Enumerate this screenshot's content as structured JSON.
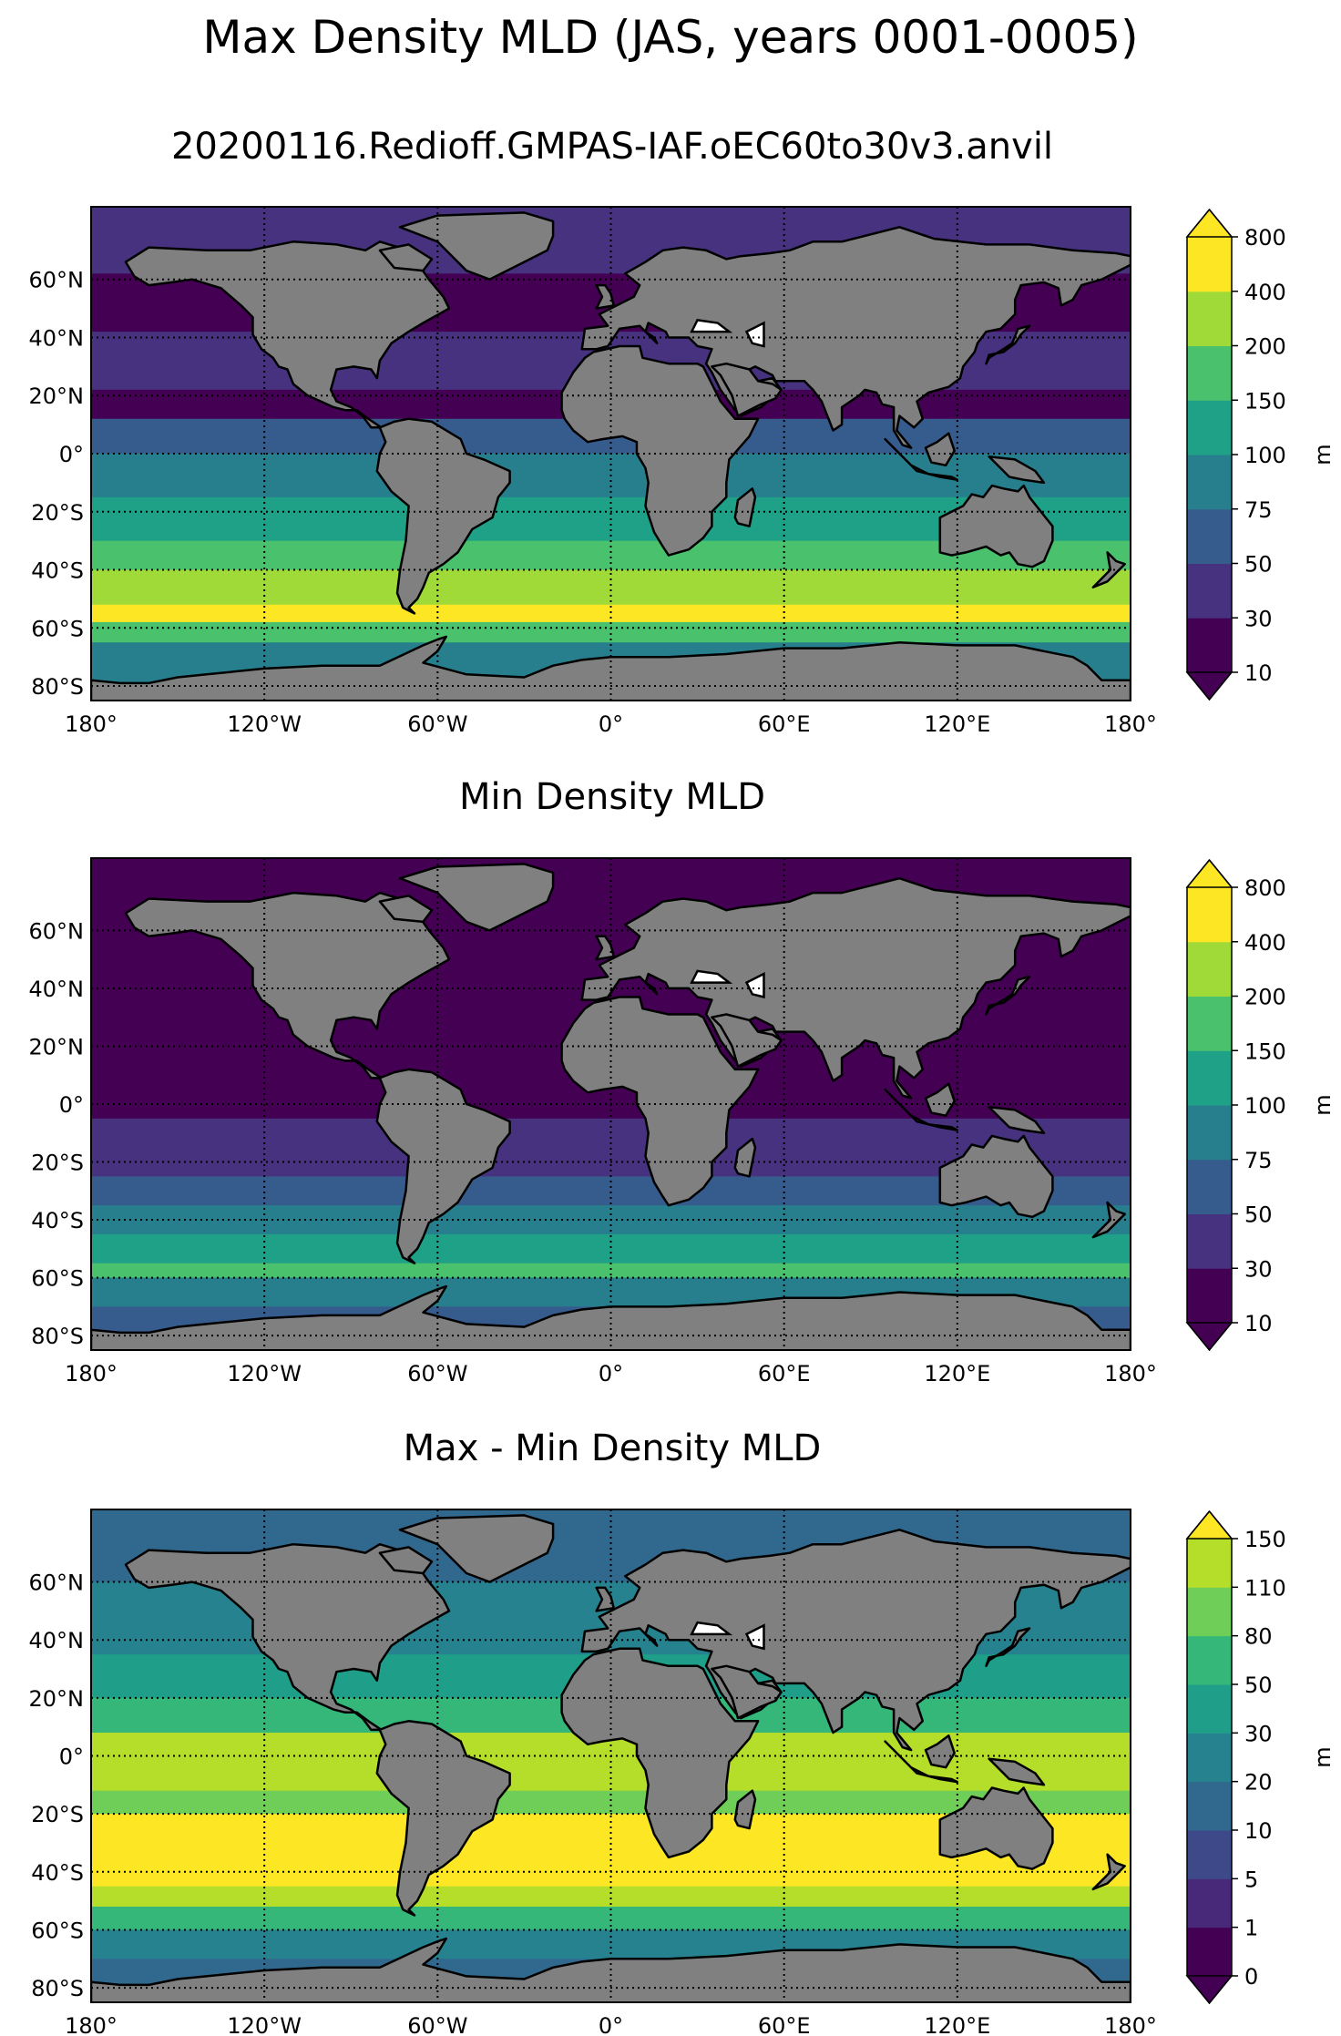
{
  "suptitle": "Max Density MLD (JAS, years 0001-0005)",
  "colors": {
    "land": "#808080",
    "coast": "#000000",
    "viridis": [
      "#440154",
      "#46327e",
      "#365c8d",
      "#277f8e",
      "#1fa187",
      "#4ac16d",
      "#a0da39",
      "#fde725"
    ],
    "ten": [
      "#440154",
      "#482878",
      "#3e4989",
      "#31688e",
      "#26828e",
      "#1f9e89",
      "#35b779",
      "#6ece58",
      "#b5de2b",
      "#fde725"
    ]
  },
  "longitude_ticks": [
    "180°",
    "120°W",
    "60°W",
    "0°",
    "60°E",
    "120°E",
    "180°"
  ],
  "latitude_ticks": [
    "60°N",
    "40°N",
    "20°N",
    "0°",
    "20°S",
    "40°S",
    "60°S",
    "80°S"
  ],
  "panels": [
    {
      "id": "max",
      "title": "20200116.Redioff.GMPAS-IAF.oEC60to30v3.anvil",
      "colorbar": {
        "unit": "m",
        "levels": [
          "10",
          "30",
          "50",
          "75",
          "100",
          "150",
          "200",
          "400",
          "800"
        ],
        "palette": "viridis",
        "extend": "both"
      },
      "bands": [
        {
          "lat": [
            90,
            62
          ],
          "class": 1
        },
        {
          "lat": [
            62,
            42
          ],
          "class": 0
        },
        {
          "lat": [
            42,
            22
          ],
          "class": 1
        },
        {
          "lat": [
            22,
            12
          ],
          "class": 0
        },
        {
          "lat": [
            12,
            0
          ],
          "class": 2
        },
        {
          "lat": [
            0,
            -15
          ],
          "class": 3
        },
        {
          "lat": [
            -15,
            -30
          ],
          "class": 4
        },
        {
          "lat": [
            -30,
            -40
          ],
          "class": 5
        },
        {
          "lat": [
            -40,
            -52
          ],
          "class": 6
        },
        {
          "lat": [
            -52,
            -58
          ],
          "class": 7
        },
        {
          "lat": [
            -58,
            -65
          ],
          "class": 5
        },
        {
          "lat": [
            -65,
            -90
          ],
          "class": 3
        }
      ]
    },
    {
      "id": "min",
      "title": "Min Density MLD",
      "colorbar": {
        "unit": "m",
        "levels": [
          "10",
          "30",
          "50",
          "75",
          "100",
          "150",
          "200",
          "400",
          "800"
        ],
        "palette": "viridis",
        "extend": "both"
      },
      "bands": [
        {
          "lat": [
            90,
            -5
          ],
          "class": 0
        },
        {
          "lat": [
            -5,
            -25
          ],
          "class": 1
        },
        {
          "lat": [
            -25,
            -35
          ],
          "class": 2
        },
        {
          "lat": [
            -35,
            -45
          ],
          "class": 3
        },
        {
          "lat": [
            -45,
            -55
          ],
          "class": 4
        },
        {
          "lat": [
            -55,
            -60
          ],
          "class": 5
        },
        {
          "lat": [
            -60,
            -70
          ],
          "class": 3
        },
        {
          "lat": [
            -70,
            -90
          ],
          "class": 2
        }
      ]
    },
    {
      "id": "diff",
      "title": "Max - Min Density MLD",
      "colorbar": {
        "unit": "m",
        "levels": [
          "0",
          "1",
          "5",
          "10",
          "20",
          "30",
          "50",
          "80",
          "110",
          "150"
        ],
        "palette": "ten",
        "extend": "both"
      },
      "bands": [
        {
          "lat": [
            90,
            60
          ],
          "class": 3
        },
        {
          "lat": [
            60,
            35
          ],
          "class": 4
        },
        {
          "lat": [
            35,
            20
          ],
          "class": 5
        },
        {
          "lat": [
            20,
            8
          ],
          "class": 6
        },
        {
          "lat": [
            8,
            -12
          ],
          "class": 8
        },
        {
          "lat": [
            -12,
            -20
          ],
          "class": 7
        },
        {
          "lat": [
            -20,
            -45
          ],
          "class": 9
        },
        {
          "lat": [
            -45,
            -52
          ],
          "class": 8
        },
        {
          "lat": [
            -52,
            -60
          ],
          "class": 6
        },
        {
          "lat": [
            -60,
            -70
          ],
          "class": 4
        },
        {
          "lat": [
            -70,
            -90
          ],
          "class": 3
        }
      ]
    }
  ]
}
